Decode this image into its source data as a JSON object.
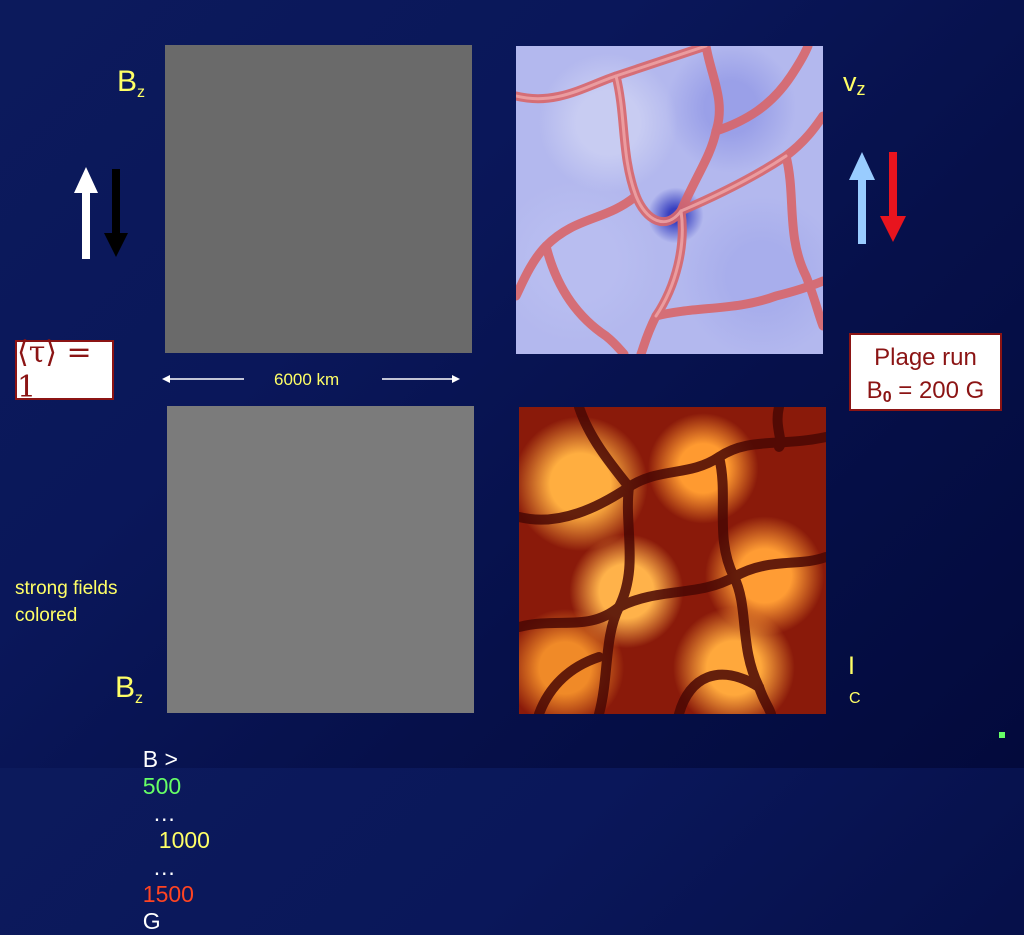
{
  "labels": {
    "bz_top": "B",
    "bz_top_sub": "z",
    "bz_bottom": "B",
    "bz_bottom_sub": "z",
    "vz": "v",
    "vz_sub": "z",
    "ic": "I",
    "ic_sub": "C",
    "scale": "6000 km",
    "tau": "⟨τ⟩ = 1",
    "strong_fields_line1": "strong fields",
    "strong_fields_line2": "colored"
  },
  "plage_box": {
    "line1": "Plage run",
    "b": "B",
    "b_sub": "0",
    "value": " = 200 G"
  },
  "field_scale": {
    "prefix": "B >",
    "v1": "500",
    "sep1": "…",
    "v2": "1000",
    "sep2": "…",
    "v3": "1500",
    "unit": "G"
  },
  "colors": {
    "text_yellow": "#ffff66",
    "scale_green": "#66ff66",
    "scale_red": "#ff4422",
    "box_red": "#8b1414",
    "arrow_light_blue": "#99ccff",
    "arrow_red": "#e8141e"
  }
}
